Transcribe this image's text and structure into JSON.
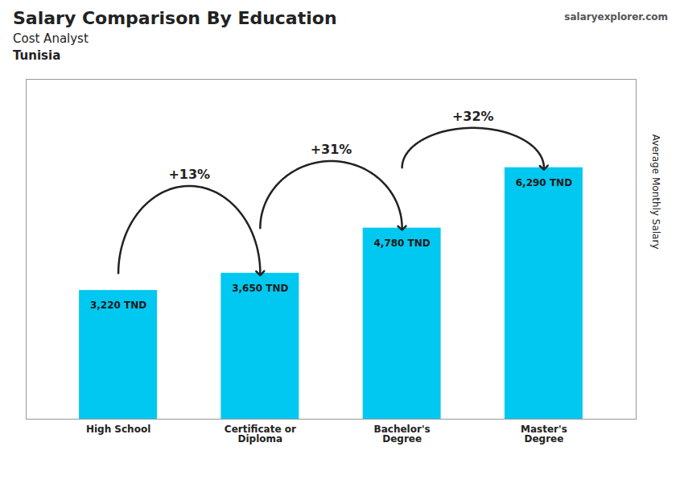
{
  "chart_data": {
    "type": "bar",
    "title": "Salary Comparison By Education",
    "subtitle": "Cost Analyst",
    "country": "Tunisia",
    "source": "salaryexplorer.com",
    "ylabel": "Average Monthly Salary",
    "categories": [
      "High School",
      "Certificate or\nDiploma",
      "Bachelor's\nDegree",
      "Master's\nDegree"
    ],
    "values": [
      3220,
      3650,
      4780,
      6290
    ],
    "value_labels": [
      "3,220 TND",
      "3,650 TND",
      "4,780 TND",
      "6,290 TND"
    ],
    "data_labels": true,
    "annotations": [
      "+13%",
      "+31%",
      "+32%"
    ],
    "color": "#00c8f0",
    "ylim": [
      0,
      8500
    ],
    "tick_labels": "x",
    "grid": false
  }
}
